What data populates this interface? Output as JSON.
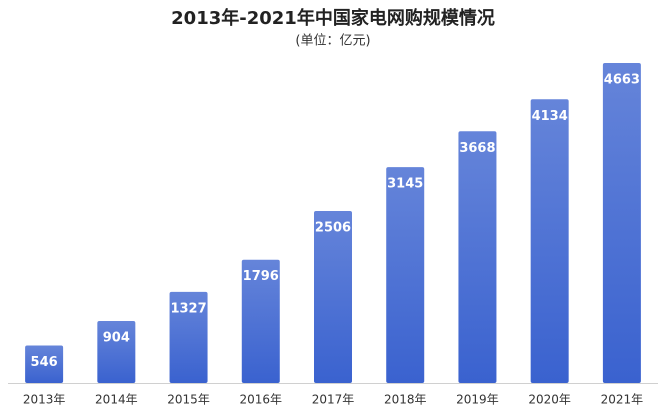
{
  "chart_data": {
    "type": "bar",
    "title": "2013年-2021年中国家电网购规模情况",
    "subtitle": "(单位：亿元)",
    "categories": [
      "2013年",
      "2014年",
      "2015年",
      "2016年",
      "2017年",
      "2018年",
      "2019年",
      "2020年",
      "2021年"
    ],
    "values": [
      546,
      904,
      1327,
      1796,
      2506,
      3145,
      3668,
      4134,
      4663
    ],
    "color": "#3a62cf"
  }
}
